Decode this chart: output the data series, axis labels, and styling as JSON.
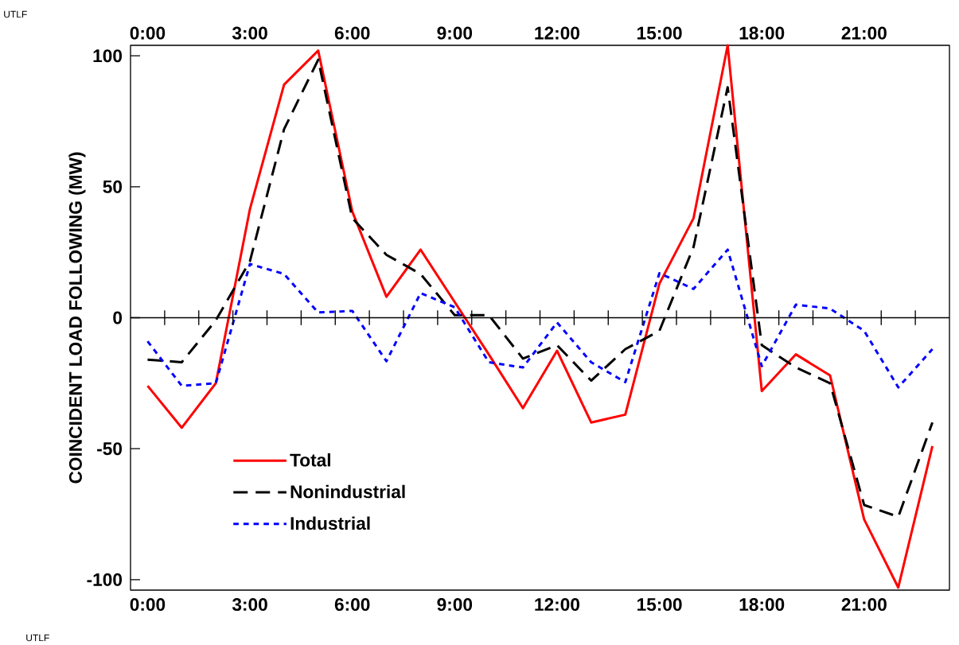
{
  "chart_data": {
    "type": "line",
    "ylabel": "COINCIDENT LOAD FOLLOWING (MW)",
    "annotations": [
      "UTLF",
      "UTLF"
    ],
    "x": [
      0,
      1,
      2,
      3,
      4,
      5,
      6,
      7,
      8,
      9,
      10,
      11,
      12,
      13,
      14,
      15,
      16,
      17,
      18,
      19,
      20,
      21,
      22,
      23
    ],
    "series": [
      {
        "name": "Total",
        "color": "#ff0000",
        "line_style": "solid",
        "values": [
          -26,
          -42,
          -25,
          41.5,
          89,
          102,
          40.5,
          8,
          26,
          6,
          -14,
          -34.5,
          -12.6,
          -40,
          -37,
          13,
          38,
          104,
          -28,
          -14,
          -22,
          -77,
          -103,
          -49
        ]
      },
      {
        "name": "Nonindustrial",
        "color": "#000000",
        "line_style": "dashed",
        "values": [
          -16,
          -17,
          -1,
          21.6,
          72,
          98.5,
          38,
          24,
          16.7,
          1,
          1,
          -15.6,
          -10.5,
          -24,
          -12,
          -5,
          27,
          88,
          -10.5,
          -19,
          -25,
          -71.5,
          -76,
          -40
        ]
      },
      {
        "name": "Industrial",
        "color": "#0000ff",
        "line_style": "dotted",
        "values": [
          -9,
          -26,
          -25,
          20.5,
          16.7,
          2,
          2.6,
          -16.6,
          9.4,
          4,
          -17,
          -19,
          -1.8,
          -17,
          -24.6,
          17,
          11,
          26,
          -18.5,
          5,
          3.5,
          -5,
          -26.6,
          -12
        ]
      }
    ],
    "xlim": [
      -0.5,
      23.5
    ],
    "xticks": [
      {
        "value": 0,
        "label": "0:00"
      },
      {
        "value": 3,
        "label": "3:00"
      },
      {
        "value": 6,
        "label": "6:00"
      },
      {
        "value": 9,
        "label": "9:00"
      },
      {
        "value": 12,
        "label": "12:00"
      },
      {
        "value": 15,
        "label": "15:00"
      },
      {
        "value": 18,
        "label": "18:00"
      },
      {
        "value": 21,
        "label": "21:00"
      }
    ],
    "x2lim": [
      -0.5,
      23.5
    ],
    "x2ticks": [
      {
        "value": 0,
        "label": "0:00"
      },
      {
        "value": 3,
        "label": "3:00"
      },
      {
        "value": 6,
        "label": "6:00"
      },
      {
        "value": 9,
        "label": "9:00"
      },
      {
        "value": 12,
        "label": "12:00"
      },
      {
        "value": 15,
        "label": "15:00"
      },
      {
        "value": 18,
        "label": "18:00"
      },
      {
        "value": 21,
        "label": "21:00"
      }
    ],
    "ylim": [
      -104,
      104
    ],
    "yticks": [
      -100,
      -50,
      0,
      50,
      100
    ],
    "legend": "bottom left",
    "marker": "none"
  }
}
